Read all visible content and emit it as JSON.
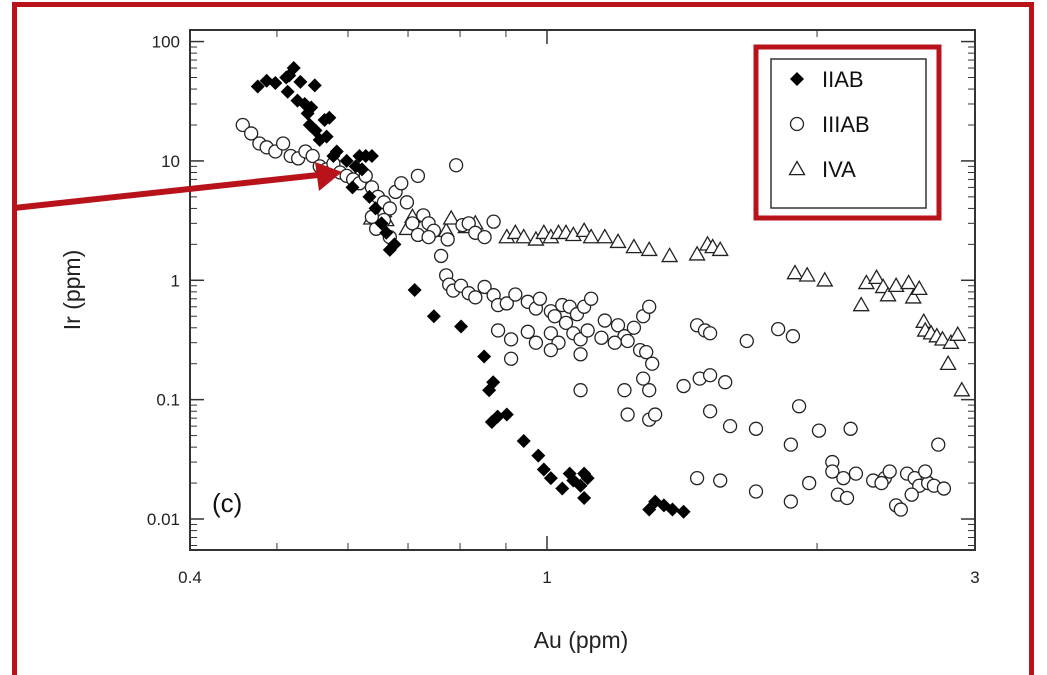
{
  "chart_data": {
    "type": "scatter",
    "xlabel": "Au (ppm)",
    "ylabel": "Ir (ppm)",
    "xscale": "log",
    "yscale": "log",
    "xlim": [
      0.4,
      3
    ],
    "ylim": [
      0.0055,
      125
    ],
    "x_ticks": [
      {
        "value": 0.4,
        "label": "0.4"
      },
      {
        "value": 1,
        "label": "1"
      },
      {
        "value": 3,
        "label": "3"
      }
    ],
    "y_ticks": [
      {
        "value": 0.01,
        "label": "0.01"
      },
      {
        "value": 0.1,
        "label": "0.1"
      },
      {
        "value": 1,
        "label": "1"
      },
      {
        "value": 10,
        "label": "10"
      },
      {
        "value": 100,
        "label": "100"
      }
    ],
    "panel_label": "(c)",
    "legend_position": "top-right",
    "grid": false,
    "annotation": {
      "type": "arrow",
      "color": "#b8121b",
      "points_to": [
        0.61,
        6.5
      ]
    },
    "series": [
      {
        "name": "IIAB",
        "marker": "diamond-filled",
        "color": "#000000",
        "points": [
          [
            0.476,
            42
          ],
          [
            0.487,
            47
          ],
          [
            0.498,
            45
          ],
          [
            0.512,
            50
          ],
          [
            0.516,
            52
          ],
          [
            0.522,
            60
          ],
          [
            0.514,
            38
          ],
          [
            0.527,
            32
          ],
          [
            0.537,
            30
          ],
          [
            0.546,
            28
          ],
          [
            0.541,
            25
          ],
          [
            0.544,
            20
          ],
          [
            0.552,
            18
          ],
          [
            0.558,
            15
          ],
          [
            0.531,
            46
          ],
          [
            0.551,
            43
          ],
          [
            0.565,
            22
          ],
          [
            0.572,
            23
          ],
          [
            0.568,
            16
          ],
          [
            0.583,
            12
          ],
          [
            0.578,
            11
          ],
          [
            0.598,
            10
          ],
          [
            0.618,
            11
          ],
          [
            0.628,
            11
          ],
          [
            0.638,
            11
          ],
          [
            0.612,
            9
          ],
          [
            0.622,
            8.5
          ],
          [
            0.607,
            6
          ],
          [
            0.634,
            5
          ],
          [
            0.644,
            4
          ],
          [
            0.654,
            3
          ],
          [
            0.662,
            2.5
          ],
          [
            0.668,
            1.8
          ],
          [
            0.676,
            2
          ],
          [
            0.712,
            0.83
          ],
          [
            0.748,
            0.5
          ],
          [
            0.802,
            0.41
          ],
          [
            0.851,
            0.23
          ],
          [
            0.871,
            0.14
          ],
          [
            0.862,
            0.12
          ],
          [
            0.868,
            0.065
          ],
          [
            0.881,
            0.072
          ],
          [
            0.902,
            0.075
          ],
          [
            0.942,
            0.045
          ],
          [
            0.978,
            0.034
          ],
          [
            0.992,
            0.026
          ],
          [
            1.01,
            0.022
          ],
          [
            1.04,
            0.018
          ],
          [
            1.06,
            0.024
          ],
          [
            1.07,
            0.021
          ],
          [
            1.09,
            0.019
          ],
          [
            1.1,
            0.024
          ],
          [
            1.11,
            0.022
          ],
          [
            1.1,
            0.015
          ],
          [
            1.3,
            0.012
          ],
          [
            1.32,
            0.014
          ],
          [
            1.35,
            0.013
          ],
          [
            1.38,
            0.012
          ],
          [
            1.42,
            0.0115
          ]
        ]
      },
      {
        "name": "IIIAB",
        "marker": "circle-open",
        "color": "#000000",
        "points": [
          [
            0.458,
            20
          ],
          [
            0.468,
            17
          ],
          [
            0.478,
            14
          ],
          [
            0.487,
            13
          ],
          [
            0.498,
            12
          ],
          [
            0.508,
            14
          ],
          [
            0.518,
            11
          ],
          [
            0.528,
            10.5
          ],
          [
            0.538,
            12
          ],
          [
            0.548,
            11
          ],
          [
            0.558,
            9
          ],
          [
            0.568,
            8.5
          ],
          [
            0.578,
            9.5
          ],
          [
            0.588,
            8
          ],
          [
            0.598,
            7.5
          ],
          [
            0.608,
            7
          ],
          [
            0.618,
            6.5
          ],
          [
            0.628,
            7.5
          ],
          [
            0.638,
            6
          ],
          [
            0.648,
            5
          ],
          [
            0.658,
            4.5
          ],
          [
            0.668,
            4
          ],
          [
            0.678,
            5.5
          ],
          [
            0.688,
            6.5
          ],
          [
            0.698,
            4.5
          ],
          [
            0.708,
            3
          ],
          [
            0.718,
            7.5
          ],
          [
            0.728,
            3.5
          ],
          [
            0.738,
            3
          ],
          [
            0.748,
            2.6
          ],
          [
            0.658,
            3.2
          ],
          [
            0.645,
            2.7
          ],
          [
            0.638,
            3.4
          ],
          [
            0.668,
            2.3
          ],
          [
            0.718,
            2.4
          ],
          [
            0.738,
            2.3
          ],
          [
            0.775,
            2.2
          ],
          [
            0.792,
            9.2
          ],
          [
            0.805,
            2.9
          ],
          [
            0.818,
            3
          ],
          [
            0.832,
            2.5
          ],
          [
            0.852,
            2.3
          ],
          [
            0.872,
            3.1
          ],
          [
            0.762,
            1.6
          ],
          [
            0.772,
            1.1
          ],
          [
            0.778,
            0.92
          ],
          [
            0.786,
            0.82
          ],
          [
            0.802,
            0.9
          ],
          [
            0.818,
            0.78
          ],
          [
            0.832,
            0.72
          ],
          [
            0.852,
            0.88
          ],
          [
            0.872,
            0.75
          ],
          [
            0.882,
            0.62
          ],
          [
            0.902,
            0.64
          ],
          [
            0.922,
            0.76
          ],
          [
            0.952,
            0.66
          ],
          [
            0.972,
            0.58
          ],
          [
            0.982,
            0.7
          ],
          [
            1.01,
            0.55
          ],
          [
            1.02,
            0.5
          ],
          [
            1.04,
            0.62
          ],
          [
            1.06,
            0.6
          ],
          [
            1.08,
            0.52
          ],
          [
            1.1,
            0.6
          ],
          [
            1.12,
            0.7
          ],
          [
            1.05,
            0.44
          ],
          [
            1.16,
            0.46
          ],
          [
            1.2,
            0.42
          ],
          [
            1.22,
            0.34
          ],
          [
            1.25,
            0.4
          ],
          [
            1.28,
            0.5
          ],
          [
            1.3,
            0.6
          ],
          [
            0.882,
            0.38
          ],
          [
            0.912,
            0.32
          ],
          [
            0.952,
            0.37
          ],
          [
            0.972,
            0.3
          ],
          [
            1.01,
            0.36
          ],
          [
            1.03,
            0.3
          ],
          [
            1.07,
            0.36
          ],
          [
            1.09,
            0.32
          ],
          [
            1.11,
            0.38
          ],
          [
            1.15,
            0.33
          ],
          [
            1.19,
            0.3
          ],
          [
            1.23,
            0.31
          ],
          [
            1.27,
            0.26
          ],
          [
            1.29,
            0.25
          ],
          [
            1.31,
            0.2
          ],
          [
            0.912,
            0.22
          ],
          [
            1.01,
            0.26
          ],
          [
            1.09,
            0.24
          ],
          [
            1.47,
            0.42
          ],
          [
            1.5,
            0.38
          ],
          [
            1.52,
            0.36
          ],
          [
            1.67,
            0.31
          ],
          [
            1.81,
            0.39
          ],
          [
            1.88,
            0.34
          ],
          [
            1.42,
            0.13
          ],
          [
            1.48,
            0.15
          ],
          [
            1.52,
            0.16
          ],
          [
            1.58,
            0.14
          ],
          [
            1.28,
            0.15
          ],
          [
            1.3,
            0.12
          ],
          [
            1.22,
            0.12
          ],
          [
            1.09,
            0.12
          ],
          [
            1.23,
            0.075
          ],
          [
            1.3,
            0.068
          ],
          [
            1.32,
            0.075
          ],
          [
            1.52,
            0.08
          ],
          [
            1.6,
            0.06
          ],
          [
            1.71,
            0.057
          ],
          [
            1.91,
            0.088
          ],
          [
            2.18,
            0.057
          ],
          [
            2.01,
            0.055
          ],
          [
            1.87,
            0.042
          ],
          [
            2.08,
            0.03
          ],
          [
            1.47,
            0.022
          ],
          [
            1.56,
            0.021
          ],
          [
            1.71,
            0.017
          ],
          [
            1.87,
            0.014
          ],
          [
            1.96,
            0.02
          ],
          [
            2.08,
            0.025
          ],
          [
            2.14,
            0.022
          ],
          [
            2.11,
            0.016
          ],
          [
            2.16,
            0.015
          ],
          [
            2.31,
            0.021
          ],
          [
            2.38,
            0.022
          ],
          [
            2.41,
            0.025
          ],
          [
            2.36,
            0.02
          ],
          [
            2.45,
            0.013
          ],
          [
            2.48,
            0.012
          ],
          [
            2.52,
            0.024
          ],
          [
            2.57,
            0.022
          ],
          [
            2.6,
            0.019
          ],
          [
            2.66,
            0.02
          ],
          [
            2.7,
            0.019
          ],
          [
            2.77,
            0.018
          ],
          [
            2.55,
            0.016
          ],
          [
            2.64,
            0.025
          ],
          [
            2.21,
            0.024
          ],
          [
            2.73,
            0.042
          ]
        ]
      },
      {
        "name": "IVA",
        "marker": "triangle-open",
        "color": "#000000",
        "points": [
          [
            0.637,
            3.3
          ],
          [
            0.648,
            3.0
          ],
          [
            0.658,
            3.8
          ],
          [
            0.662,
            3.2
          ],
          [
            0.698,
            2.7
          ],
          [
            0.708,
            3.4
          ],
          [
            0.772,
            2.6
          ],
          [
            0.782,
            3.3
          ],
          [
            0.812,
            2.8
          ],
          [
            0.832,
            3.0
          ],
          [
            0.902,
            2.3
          ],
          [
            0.922,
            2.5
          ],
          [
            0.942,
            2.3
          ],
          [
            0.972,
            2.2
          ],
          [
            0.992,
            2.5
          ],
          [
            1.01,
            2.3
          ],
          [
            1.03,
            2.5
          ],
          [
            1.05,
            2.5
          ],
          [
            1.07,
            2.4
          ],
          [
            1.1,
            2.6
          ],
          [
            1.12,
            2.3
          ],
          [
            1.16,
            2.3
          ],
          [
            1.2,
            2.1
          ],
          [
            1.25,
            1.9
          ],
          [
            1.3,
            1.8
          ],
          [
            1.37,
            1.6
          ],
          [
            1.47,
            1.65
          ],
          [
            1.51,
            2.0
          ],
          [
            1.53,
            1.9
          ],
          [
            1.56,
            1.8
          ],
          [
            1.89,
            1.15
          ],
          [
            1.95,
            1.1
          ],
          [
            2.04,
            1.0
          ],
          [
            2.24,
            0.62
          ],
          [
            2.27,
            0.95
          ],
          [
            2.33,
            1.05
          ],
          [
            2.37,
            0.88
          ],
          [
            2.4,
            0.75
          ],
          [
            2.45,
            0.9
          ],
          [
            2.53,
            0.95
          ],
          [
            2.56,
            0.72
          ],
          [
            2.6,
            0.85
          ],
          [
            2.63,
            0.45
          ],
          [
            2.64,
            0.38
          ],
          [
            2.68,
            0.36
          ],
          [
            2.72,
            0.34
          ],
          [
            2.76,
            0.32
          ],
          [
            2.82,
            0.3
          ],
          [
            2.87,
            0.35
          ],
          [
            2.8,
            0.2
          ],
          [
            2.9,
            0.12
          ]
        ]
      }
    ]
  }
}
